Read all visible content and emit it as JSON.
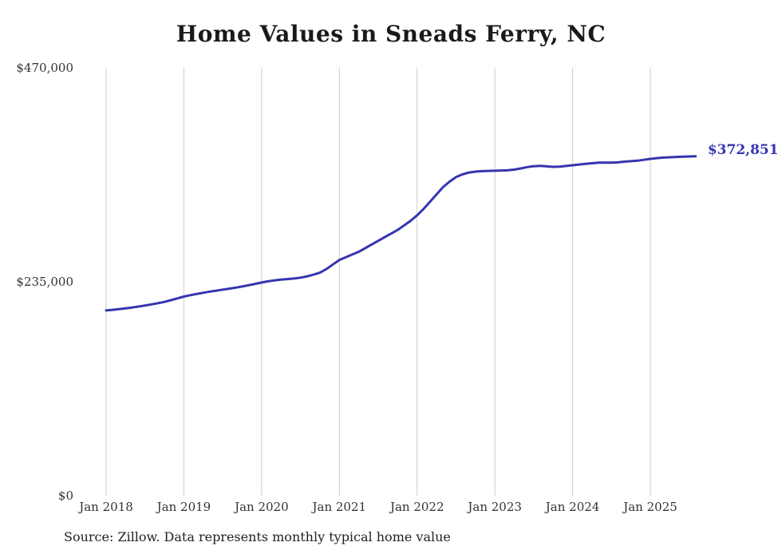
{
  "colors": {
    "line": "#3535b0",
    "grid": "#cccccc",
    "tick_text": "#333333",
    "title_text": "#1a1a1a",
    "end_label": "#3535b0"
  },
  "source_note": "Source: Zillow. Data represents monthly typical home value",
  "chart_data": {
    "type": "line",
    "title": "Home Values in Sneads Ferry, NC",
    "xlabel": "",
    "ylabel": "",
    "ylim": [
      0,
      470000
    ],
    "grid": "vertical-only",
    "legend": "none",
    "end_label": "$372,851",
    "x_ticks": [
      "Jan 2018",
      "Jan 2019",
      "Jan 2020",
      "Jan 2021",
      "Jan 2022",
      "Jan 2023",
      "Jan 2024",
      "Jan 2025"
    ],
    "y_ticks": [
      {
        "label": "$0",
        "value": 0
      },
      {
        "label": "$235,000",
        "value": 235000
      },
      {
        "label": "$470,000",
        "value": 470000
      }
    ],
    "months": [
      "Jan 2018",
      "Feb 2018",
      "Mar 2018",
      "Apr 2018",
      "May 2018",
      "Jun 2018",
      "Jul 2018",
      "Aug 2018",
      "Sep 2018",
      "Oct 2018",
      "Nov 2018",
      "Dec 2018",
      "Jan 2019",
      "Feb 2019",
      "Mar 2019",
      "Apr 2019",
      "May 2019",
      "Jun 2019",
      "Jul 2019",
      "Aug 2019",
      "Sep 2019",
      "Oct 2019",
      "Nov 2019",
      "Dec 2019",
      "Jan 2020",
      "Feb 2020",
      "Mar 2020",
      "Apr 2020",
      "May 2020",
      "Jun 2020",
      "Jul 2020",
      "Aug 2020",
      "Sep 2020",
      "Oct 2020",
      "Nov 2020",
      "Dec 2020",
      "Jan 2021",
      "Feb 2021",
      "Mar 2021",
      "Apr 2021",
      "May 2021",
      "Jun 2021",
      "Jul 2021",
      "Aug 2021",
      "Sep 2021",
      "Oct 2021",
      "Nov 2021",
      "Dec 2021",
      "Jan 2022",
      "Feb 2022",
      "Mar 2022",
      "Apr 2022",
      "May 2022",
      "Jun 2022",
      "Jul 2022",
      "Aug 2022",
      "Sep 2022",
      "Oct 2022",
      "Nov 2022",
      "Dec 2022",
      "Jan 2023",
      "Feb 2023",
      "Mar 2023",
      "Apr 2023",
      "May 2023",
      "Jun 2023",
      "Jul 2023",
      "Aug 2023",
      "Sep 2023",
      "Oct 2023",
      "Nov 2023",
      "Dec 2023",
      "Jan 2024",
      "Feb 2024",
      "Mar 2024",
      "Apr 2024",
      "May 2024",
      "Jun 2024",
      "Jul 2024",
      "Aug 2024",
      "Sep 2024",
      "Oct 2024",
      "Nov 2024",
      "Dec 2024",
      "Jan 2025",
      "Feb 2025",
      "Mar 2025",
      "Apr 2025",
      "May 2025",
      "Jun 2025",
      "Jul 2025",
      "Aug 2025"
    ],
    "series": [
      {
        "name": "Typical home value",
        "values": [
          203500,
          204200,
          205000,
          205900,
          206800,
          207800,
          209000,
          210200,
          211500,
          212900,
          214800,
          216800,
          218800,
          220300,
          221700,
          223000,
          224200,
          225300,
          226400,
          227500,
          228600,
          229800,
          231200,
          232700,
          234200,
          235500,
          236600,
          237400,
          238000,
          238600,
          239600,
          241000,
          242800,
          245000,
          249000,
          254000,
          259000,
          262000,
          265000,
          268000,
          272000,
          276000,
          280000,
          284000,
          288000,
          292000,
          297000,
          302000,
          308000,
          315000,
          323000,
          331000,
          339000,
          345000,
          350000,
          353000,
          355000,
          356000,
          356500,
          356800,
          357000,
          357200,
          357500,
          358200,
          359500,
          361000,
          362000,
          362300,
          361800,
          361300,
          361500,
          362200,
          363000,
          363800,
          364500,
          365200,
          365800,
          366000,
          365800,
          366200,
          367000,
          367500,
          368000,
          369000,
          370000,
          370800,
          371400,
          371800,
          372100,
          372400,
          372650,
          372851
        ]
      }
    ]
  }
}
